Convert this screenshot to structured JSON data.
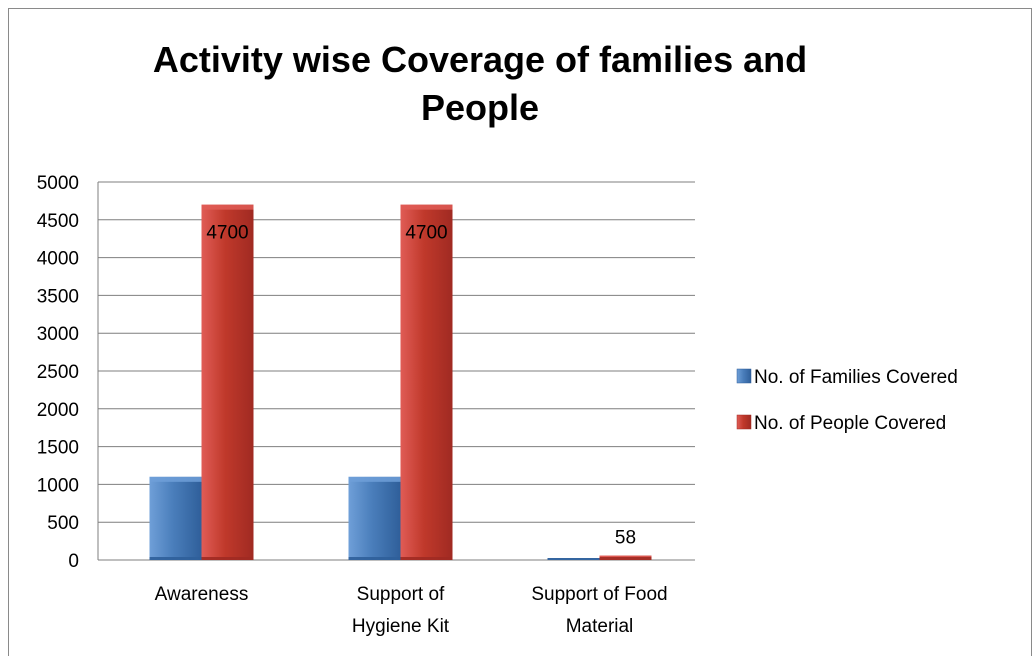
{
  "colors": {
    "series_1": "#4a7ebb",
    "series_1_light": "#6f9fd8",
    "series_1_dark": "#2f5f9a",
    "series_2": "#c0392b",
    "series_2_light": "#e05c56",
    "series_2_dark": "#a02a22",
    "gridline": "#7f7f7f"
  },
  "chart_data": {
    "type": "bar",
    "title": "Activity wise Coverage of families and\nPeople",
    "xlabel": "",
    "ylabel": "",
    "ylim": [
      0,
      5000
    ],
    "yticks": [
      "0",
      "500",
      "1000",
      "1500",
      "2000",
      "2500",
      "3000",
      "3500",
      "4000",
      "4500",
      "5000"
    ],
    "grid": true,
    "legend_position": "right",
    "categories": [
      [
        "Awareness"
      ],
      [
        "Support of",
        "Hygiene Kit"
      ],
      [
        "Support of Food",
        "Material"
      ]
    ],
    "series": [
      {
        "name": "No. of Families Covered",
        "values": [
          1100,
          1100,
          15
        ],
        "data_labels": [
          "",
          "",
          ""
        ]
      },
      {
        "name": "No. of People Covered",
        "values": [
          4700,
          4700,
          58
        ],
        "data_labels": [
          "4700",
          "4700",
          "58"
        ]
      }
    ]
  }
}
